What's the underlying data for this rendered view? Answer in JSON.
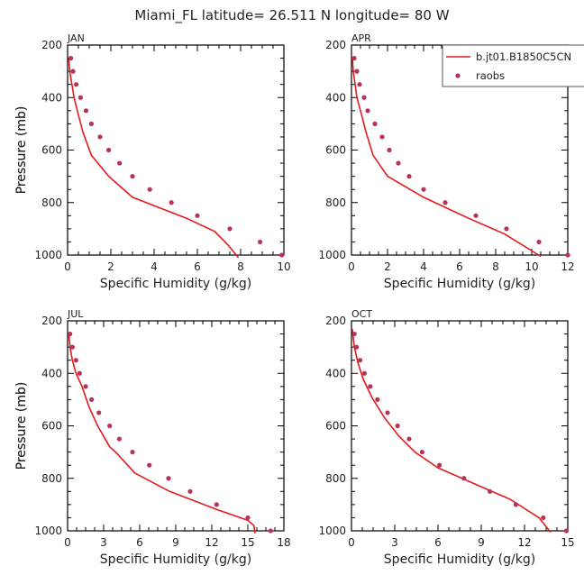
{
  "figure_title": "Miami_FL  latitude= 26.511 N longitude= 80 W",
  "legend": {
    "model_label": "b.jt01.B1850C5CN",
    "obs_label": "raobs"
  },
  "colors": {
    "model_line": "#e41a1c",
    "obs_marker": "#b8325a",
    "axis": "#000000"
  },
  "chart_data": [
    {
      "type": "line",
      "panel": "JAN",
      "xlabel": "Specific Humidity (g/kg)",
      "ylabel": "Pressure (mb)",
      "xlim": [
        0,
        10
      ],
      "xticks": [
        0,
        2,
        4,
        6,
        8,
        10
      ],
      "ylim": [
        1000,
        200
      ],
      "yticks": [
        200,
        400,
        600,
        800,
        1000
      ],
      "series": [
        {
          "name": "b.jt01.B1850C5CN",
          "kind": "line",
          "x": [
            0.05,
            0.1,
            0.2,
            0.3,
            0.45,
            0.7,
            1.1,
            1.9,
            3.0,
            5.5,
            6.8,
            7.4,
            7.9
          ],
          "y": [
            250,
            300,
            350,
            400,
            450,
            530,
            620,
            700,
            780,
            860,
            910,
            960,
            1010
          ]
        },
        {
          "name": "raobs",
          "kind": "scatter",
          "x": [
            0.15,
            0.25,
            0.4,
            0.6,
            0.85,
            1.1,
            1.5,
            1.9,
            2.4,
            3.0,
            3.8,
            4.8,
            6.0,
            7.5,
            8.9,
            9.9
          ],
          "y": [
            250,
            300,
            350,
            400,
            450,
            500,
            550,
            600,
            650,
            700,
            750,
            800,
            850,
            900,
            950,
            1000
          ]
        }
      ]
    },
    {
      "type": "line",
      "panel": "APR",
      "xlabel": "Specific Humidity (g/kg)",
      "ylabel": "Pressure (mb)",
      "xlim": [
        0,
        12
      ],
      "xticks": [
        0,
        2,
        4,
        6,
        8,
        10,
        12
      ],
      "ylim": [
        1000,
        200
      ],
      "yticks": [
        200,
        400,
        600,
        800,
        1000
      ],
      "series": [
        {
          "name": "b.jt01.B1850C5CN",
          "kind": "line",
          "x": [
            0.05,
            0.1,
            0.2,
            0.3,
            0.5,
            0.8,
            1.2,
            2.0,
            4.0,
            6.5,
            8.5,
            10.5
          ],
          "y": [
            250,
            300,
            350,
            400,
            450,
            530,
            620,
            700,
            780,
            860,
            920,
            1005
          ]
        },
        {
          "name": "raobs",
          "kind": "scatter",
          "x": [
            0.15,
            0.3,
            0.45,
            0.7,
            0.9,
            1.3,
            1.7,
            2.1,
            2.6,
            3.2,
            4.0,
            5.2,
            6.9,
            8.6,
            10.4,
            12.0
          ],
          "y": [
            250,
            300,
            350,
            400,
            450,
            500,
            550,
            600,
            650,
            700,
            750,
            800,
            850,
            900,
            950,
            1000
          ]
        }
      ]
    },
    {
      "type": "line",
      "panel": "JUL",
      "xlabel": "Specific Humidity (g/kg)",
      "ylabel": "Pressure (mb)",
      "xlim": [
        0,
        18
      ],
      "xticks": [
        0,
        3,
        6,
        9,
        12,
        15,
        18
      ],
      "ylim": [
        1000,
        200
      ],
      "yticks": [
        200,
        400,
        600,
        800,
        1000
      ],
      "series": [
        {
          "name": "b.jt01.B1850C5CN",
          "kind": "line",
          "x": [
            0.1,
            0.2,
            0.4,
            0.7,
            1.2,
            1.8,
            2.5,
            3.5,
            4.0,
            5.6,
            8.5,
            12.5,
            15.0,
            15.5,
            15.6
          ],
          "y": [
            250,
            300,
            350,
            400,
            450,
            530,
            600,
            680,
            700,
            780,
            850,
            920,
            960,
            980,
            1010
          ]
        },
        {
          "name": "raobs",
          "kind": "scatter",
          "x": [
            0.2,
            0.4,
            0.7,
            1.0,
            1.5,
            2.0,
            2.6,
            3.5,
            4.3,
            5.4,
            6.8,
            8.4,
            10.2,
            12.4,
            15.0,
            16.9
          ],
          "y": [
            250,
            300,
            350,
            400,
            450,
            500,
            550,
            600,
            650,
            700,
            750,
            800,
            850,
            900,
            950,
            1000
          ]
        }
      ]
    },
    {
      "type": "line",
      "panel": "OCT",
      "xlabel": "Specific Humidity (g/kg)",
      "ylabel": "Pressure (mb)",
      "xlim": [
        0,
        15
      ],
      "xticks": [
        0,
        3,
        6,
        9,
        12,
        15
      ],
      "ylim": [
        1000,
        200
      ],
      "yticks": [
        200,
        400,
        600,
        800,
        1000
      ],
      "series": [
        {
          "name": "b.jt01.B1850C5CN",
          "kind": "line",
          "x": [
            0.05,
            0.2,
            0.45,
            0.8,
            1.4,
            2.3,
            3.3,
            4.4,
            6.0,
            8.5,
            11.0,
            13.0,
            13.8
          ],
          "y": [
            230,
            300,
            360,
            420,
            490,
            570,
            640,
            700,
            760,
            820,
            880,
            950,
            1005
          ]
        },
        {
          "name": "raobs",
          "kind": "scatter",
          "x": [
            0.2,
            0.35,
            0.6,
            0.9,
            1.3,
            1.8,
            2.5,
            3.2,
            4.0,
            4.9,
            6.1,
            7.8,
            9.6,
            11.4,
            13.3,
            14.9
          ],
          "y": [
            250,
            300,
            350,
            400,
            450,
            500,
            550,
            600,
            650,
            700,
            750,
            800,
            850,
            900,
            950,
            1000
          ]
        }
      ]
    }
  ]
}
